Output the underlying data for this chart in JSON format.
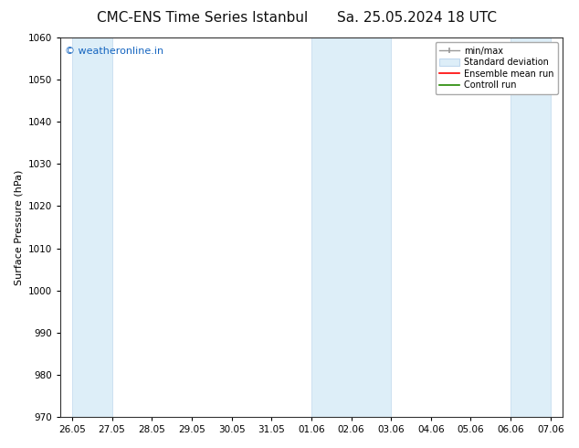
{
  "title_left": "CMC-ENS Time Series Istanbul",
  "title_right": "Sa. 25.05.2024 18 UTC",
  "ylabel": "Surface Pressure (hPa)",
  "ylim": [
    970,
    1060
  ],
  "yticks": [
    970,
    980,
    990,
    1000,
    1010,
    1020,
    1030,
    1040,
    1050,
    1060
  ],
  "xtick_labels": [
    "26.05",
    "27.05",
    "28.05",
    "29.05",
    "30.05",
    "31.05",
    "01.06",
    "02.06",
    "03.06",
    "04.06",
    "05.06",
    "06.06",
    "07.06"
  ],
  "xtick_positions": [
    0,
    1,
    2,
    3,
    4,
    5,
    6,
    7,
    8,
    9,
    10,
    11,
    12
  ],
  "shaded_bands": [
    {
      "xstart": 0,
      "xend": 1
    },
    {
      "xstart": 6,
      "xend": 8
    },
    {
      "xstart": 11,
      "xend": 12
    }
  ],
  "shade_color": "#ddeef8",
  "shade_edge_color": "#c0d8ee",
  "watermark": "© weatheronline.in",
  "watermark_color": "#1565C0",
  "legend_items": [
    {
      "label": "min/max",
      "color": "#aaaaaa",
      "type": "errorbar"
    },
    {
      "label": "Standard deviation",
      "color": "#bbccdd",
      "type": "bar"
    },
    {
      "label": "Ensemble mean run",
      "color": "#ff0000",
      "type": "line"
    },
    {
      "label": "Controll run",
      "color": "#228800",
      "type": "line"
    }
  ],
  "background_color": "#ffffff",
  "title_fontsize": 11,
  "axis_label_fontsize": 8,
  "tick_fontsize": 7.5,
  "watermark_fontsize": 8,
  "legend_fontsize": 7
}
